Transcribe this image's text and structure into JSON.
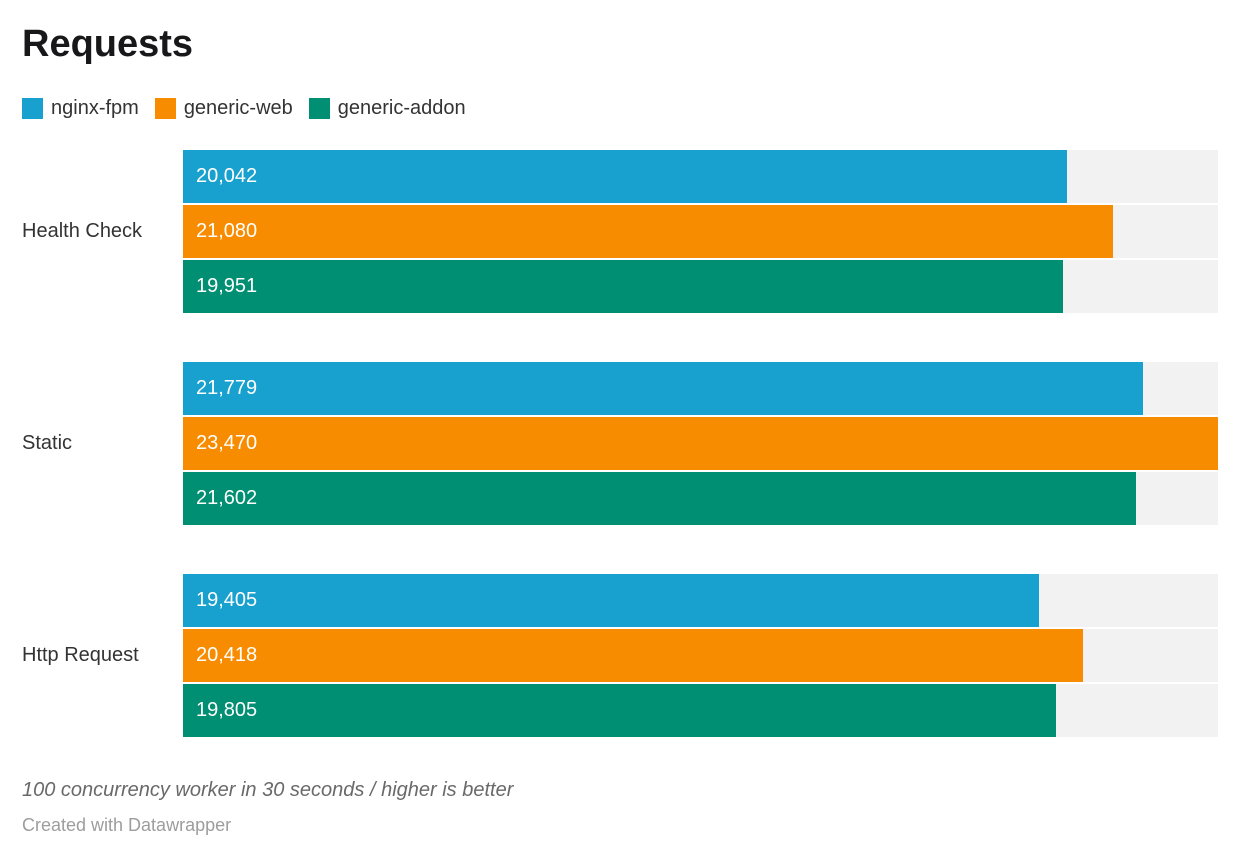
{
  "header": {
    "title": "Requests"
  },
  "legend": [
    {
      "label": "nginx-fpm",
      "color": "#18a1ce"
    },
    {
      "label": "generic-web",
      "color": "#f88c00"
    },
    {
      "label": "generic-addon",
      "color": "#008f72"
    }
  ],
  "chart_data": {
    "type": "bar",
    "orientation": "horizontal",
    "title": "Requests",
    "categories": [
      "Health Check",
      "Static",
      "Http Request"
    ],
    "series": [
      {
        "name": "nginx-fpm",
        "color": "#18a1ce",
        "values": [
          20042,
          21779,
          19405
        ],
        "labels": [
          "20,042",
          "21,779",
          "19,405"
        ]
      },
      {
        "name": "generic-web",
        "color": "#f88c00",
        "values": [
          21080,
          23470,
          20418
        ],
        "labels": [
          "21,080",
          "23,470",
          "20,418"
        ]
      },
      {
        "name": "generic-addon",
        "color": "#008f72",
        "values": [
          19951,
          21602,
          19805
        ],
        "labels": [
          "19,951",
          "21,602",
          "19,805"
        ]
      }
    ],
    "xlim": [
      0,
      23470
    ],
    "value_labels_inside_bars": true,
    "grid": false,
    "legend_position": "top",
    "track_color": "#f2f2f2"
  },
  "footer": {
    "note": "100 concurrency worker in 30 seconds / higher is better",
    "attribution": "Created with Datawrapper"
  }
}
